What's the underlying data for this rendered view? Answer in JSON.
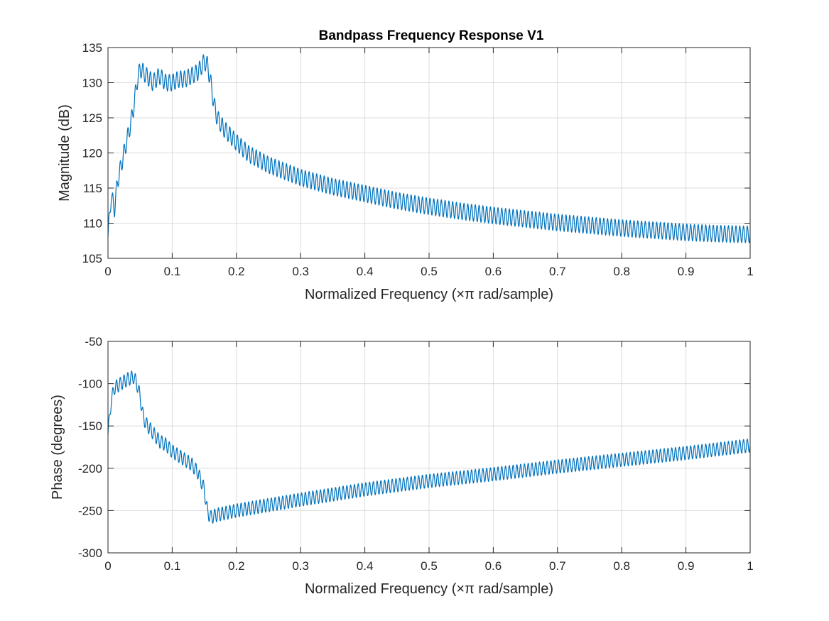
{
  "figure": {
    "title": "Bandpass Frequency Response V1",
    "line_color": "#0072BD",
    "grid_color": "#dcdcdc",
    "axis_color": "#262626"
  },
  "chart_data": [
    {
      "type": "line",
      "title": "Bandpass Frequency Response V1",
      "xlabel": "Normalized Frequency  (×π rad/sample)",
      "ylabel": "Magnitude (dB)",
      "xlim": [
        0,
        1
      ],
      "ylim": [
        105,
        135
      ],
      "grid": true,
      "xticks": [
        0,
        0.1,
        0.2,
        0.3,
        0.4,
        0.5,
        0.6,
        0.7,
        0.8,
        0.9,
        1
      ],
      "xtick_labels": [
        "0",
        "0.1",
        "0.2",
        "0.3",
        "0.4",
        "0.5",
        "0.6",
        "0.7",
        "0.8",
        "0.9",
        "1"
      ],
      "yticks": [
        105,
        110,
        115,
        120,
        125,
        130,
        135
      ],
      "ytick_labels": [
        "105",
        "110",
        "115",
        "120",
        "125",
        "130",
        "135"
      ],
      "ripple": {
        "amplitude_db": 1.2,
        "cycles": 170
      },
      "series": [
        {
          "x": [
            0,
            0.005,
            0.01,
            0.015,
            0.02,
            0.025,
            0.03,
            0.035,
            0.04,
            0.045,
            0.05,
            0.06,
            0.07,
            0.08,
            0.09,
            0.1,
            0.11,
            0.12,
            0.13,
            0.14,
            0.15,
            0.155,
            0.16,
            0.165,
            0.17,
            0.18,
            0.19,
            0.2,
            0.22,
            0.25,
            0.3,
            0.35,
            0.4,
            0.45,
            0.5,
            0.55,
            0.6,
            0.65,
            0.7,
            0.75,
            0.8,
            0.85,
            0.9,
            0.95,
            1.0
          ],
          "y": [
            108,
            114,
            112,
            116,
            118,
            120,
            122,
            124,
            126.5,
            130,
            132,
            131,
            130,
            131,
            130,
            130,
            130.5,
            130.5,
            131,
            131.5,
            133,
            132.5,
            130,
            127,
            125,
            123.5,
            122.5,
            121.5,
            119.8,
            118.3,
            116.5,
            115.2,
            114.2,
            113.2,
            112.4,
            111.7,
            111.1,
            110.6,
            110.1,
            109.7,
            109.3,
            109.0,
            108.7,
            108.5,
            108.4
          ]
        }
      ]
    },
    {
      "type": "line",
      "title": "",
      "xlabel": "Normalized Frequency  (×π rad/sample)",
      "ylabel": "Phase (degrees)",
      "xlim": [
        0,
        1
      ],
      "ylim": [
        -300,
        -50
      ],
      "grid": true,
      "xticks": [
        0,
        0.1,
        0.2,
        0.3,
        0.4,
        0.5,
        0.6,
        0.7,
        0.8,
        0.9,
        1
      ],
      "xtick_labels": [
        "0",
        "0.1",
        "0.2",
        "0.3",
        "0.4",
        "0.5",
        "0.6",
        "0.7",
        "0.8",
        "0.9",
        "1"
      ],
      "yticks": [
        -300,
        -250,
        -200,
        -150,
        -100,
        -50
      ],
      "ytick_labels": [
        "-300",
        "-250",
        "-200",
        "-150",
        "-100",
        "-50"
      ],
      "ripple": {
        "amplitude_deg": 8,
        "cycles": 170
      },
      "series": [
        {
          "x": [
            0,
            0.005,
            0.01,
            0.02,
            0.03,
            0.04,
            0.045,
            0.05,
            0.055,
            0.06,
            0.07,
            0.08,
            0.09,
            0.1,
            0.11,
            0.12,
            0.13,
            0.14,
            0.15,
            0.155,
            0.16,
            0.17,
            0.2,
            0.3,
            0.4,
            0.5,
            0.6,
            0.7,
            0.8,
            0.9,
            1.0
          ],
          "y": [
            -160,
            -120,
            -105,
            -100,
            -95,
            -92,
            -100,
            -115,
            -140,
            -148,
            -158,
            -168,
            -172,
            -180,
            -185,
            -190,
            -195,
            -205,
            -225,
            -252,
            -258,
            -255,
            -250,
            -237,
            -225,
            -215,
            -207,
            -198,
            -190,
            -182,
            -173
          ]
        }
      ]
    }
  ]
}
